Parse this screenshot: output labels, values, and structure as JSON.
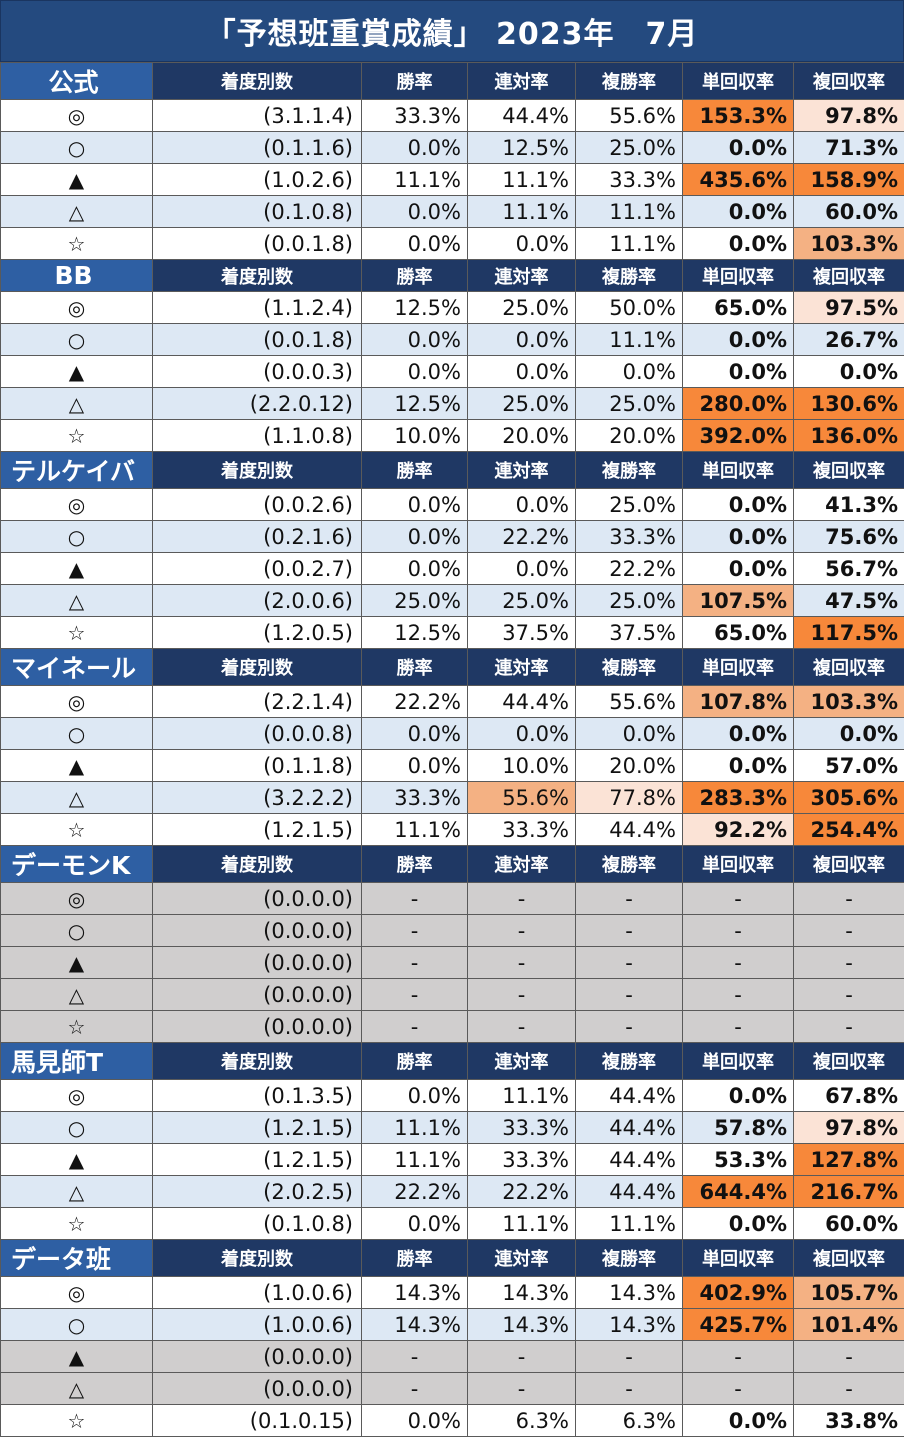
{
  "title": "「予想班重賞成績」 2023年　7月",
  "headers": [
    "着度別数",
    "勝率",
    "連対率",
    "複勝率",
    "単回収率",
    "複回収率"
  ],
  "groups": [
    {
      "name": "公式",
      "rows": [
        {
          "mark": "◎",
          "record": "(3.1.1.4)",
          "win": "33.3%",
          "place2": "44.4%",
          "show": "55.6%",
          "win_ret": "153.3%",
          "show_ret": "97.8%",
          "win_ret_hl": "o1",
          "show_ret_hl": "o3"
        },
        {
          "mark": "○",
          "record": "(0.1.1.6)",
          "win": "0.0%",
          "place2": "12.5%",
          "show": "25.0%",
          "win_ret": "0.0%",
          "show_ret": "71.3%"
        },
        {
          "mark": "▲",
          "record": "(1.0.2.6)",
          "win": "11.1%",
          "place2": "11.1%",
          "show": "33.3%",
          "win_ret": "435.6%",
          "show_ret": "158.9%",
          "win_ret_hl": "o1",
          "show_ret_hl": "o1"
        },
        {
          "mark": "△",
          "record": "(0.1.0.8)",
          "win": "0.0%",
          "place2": "11.1%",
          "show": "11.1%",
          "win_ret": "0.0%",
          "show_ret": "60.0%"
        },
        {
          "mark": "☆",
          "record": "(0.0.1.8)",
          "win": "0.0%",
          "place2": "0.0%",
          "show": "11.1%",
          "win_ret": "0.0%",
          "show_ret": "103.3%",
          "show_ret_hl": "o2"
        }
      ]
    },
    {
      "name": "BB",
      "rows": [
        {
          "mark": "◎",
          "record": "(1.1.2.4)",
          "win": "12.5%",
          "place2": "25.0%",
          "show": "50.0%",
          "win_ret": "65.0%",
          "show_ret": "97.5%",
          "show_ret_hl": "o3"
        },
        {
          "mark": "○",
          "record": "(0.0.1.8)",
          "win": "0.0%",
          "place2": "0.0%",
          "show": "11.1%",
          "win_ret": "0.0%",
          "show_ret": "26.7%"
        },
        {
          "mark": "▲",
          "record": "(0.0.0.3)",
          "win": "0.0%",
          "place2": "0.0%",
          "show": "0.0%",
          "win_ret": "0.0%",
          "show_ret": "0.0%"
        },
        {
          "mark": "△",
          "record": "(2.2.0.12)",
          "win": "12.5%",
          "place2": "25.0%",
          "show": "25.0%",
          "win_ret": "280.0%",
          "show_ret": "130.6%",
          "win_ret_hl": "o1",
          "show_ret_hl": "o1"
        },
        {
          "mark": "☆",
          "record": "(1.1.0.8)",
          "win": "10.0%",
          "place2": "20.0%",
          "show": "20.0%",
          "win_ret": "392.0%",
          "show_ret": "136.0%",
          "win_ret_hl": "o1",
          "show_ret_hl": "o1"
        }
      ]
    },
    {
      "name": "テルケイバ",
      "rows": [
        {
          "mark": "◎",
          "record": "(0.0.2.6)",
          "win": "0.0%",
          "place2": "0.0%",
          "show": "25.0%",
          "win_ret": "0.0%",
          "show_ret": "41.3%"
        },
        {
          "mark": "○",
          "record": "(0.2.1.6)",
          "win": "0.0%",
          "place2": "22.2%",
          "show": "33.3%",
          "win_ret": "0.0%",
          "show_ret": "75.6%"
        },
        {
          "mark": "▲",
          "record": "(0.0.2.7)",
          "win": "0.0%",
          "place2": "0.0%",
          "show": "22.2%",
          "win_ret": "0.0%",
          "show_ret": "56.7%"
        },
        {
          "mark": "△",
          "record": "(2.0.0.6)",
          "win": "25.0%",
          "place2": "25.0%",
          "show": "25.0%",
          "win_ret": "107.5%",
          "show_ret": "47.5%",
          "win_ret_hl": "o2"
        },
        {
          "mark": "☆",
          "record": "(1.2.0.5)",
          "win": "12.5%",
          "place2": "37.5%",
          "show": "37.5%",
          "win_ret": "65.0%",
          "show_ret": "117.5%",
          "show_ret_hl": "o1"
        }
      ]
    },
    {
      "name": "マイネール",
      "rows": [
        {
          "mark": "◎",
          "record": "(2.2.1.4)",
          "win": "22.2%",
          "place2": "44.4%",
          "show": "55.6%",
          "win_ret": "107.8%",
          "show_ret": "103.3%",
          "win_ret_hl": "o2",
          "show_ret_hl": "o2"
        },
        {
          "mark": "○",
          "record": "(0.0.0.8)",
          "win": "0.0%",
          "place2": "0.0%",
          "show": "0.0%",
          "win_ret": "0.0%",
          "show_ret": "0.0%"
        },
        {
          "mark": "▲",
          "record": "(0.1.1.8)",
          "win": "0.0%",
          "place2": "10.0%",
          "show": "20.0%",
          "win_ret": "0.0%",
          "show_ret": "57.0%"
        },
        {
          "mark": "△",
          "record": "(3.2.2.2)",
          "win": "33.3%",
          "place2": "55.6%",
          "show": "77.8%",
          "win_ret": "283.3%",
          "show_ret": "305.6%",
          "place2_hl": "o2",
          "show_hl": "o3",
          "win_ret_hl": "o1",
          "show_ret_hl": "o1"
        },
        {
          "mark": "☆",
          "record": "(1.2.1.5)",
          "win": "11.1%",
          "place2": "33.3%",
          "show": "44.4%",
          "win_ret": "92.2%",
          "show_ret": "254.4%",
          "win_ret_hl": "o3",
          "show_ret_hl": "o1"
        }
      ]
    },
    {
      "name": "デーモンK",
      "rows": [
        {
          "mark": "◎",
          "record": "(0.0.0.0)",
          "win": "-",
          "place2": "-",
          "show": "-",
          "win_ret": "-",
          "show_ret": "-",
          "gray": true
        },
        {
          "mark": "○",
          "record": "(0.0.0.0)",
          "win": "-",
          "place2": "-",
          "show": "-",
          "win_ret": "-",
          "show_ret": "-",
          "gray": true
        },
        {
          "mark": "▲",
          "record": "(0.0.0.0)",
          "win": "-",
          "place2": "-",
          "show": "-",
          "win_ret": "-",
          "show_ret": "-",
          "gray": true
        },
        {
          "mark": "△",
          "record": "(0.0.0.0)",
          "win": "-",
          "place2": "-",
          "show": "-",
          "win_ret": "-",
          "show_ret": "-",
          "gray": true
        },
        {
          "mark": "☆",
          "record": "(0.0.0.0)",
          "win": "-",
          "place2": "-",
          "show": "-",
          "win_ret": "-",
          "show_ret": "-",
          "gray": true
        }
      ]
    },
    {
      "name": "馬見師T",
      "rows": [
        {
          "mark": "◎",
          "record": "(0.1.3.5)",
          "win": "0.0%",
          "place2": "11.1%",
          "show": "44.4%",
          "win_ret": "0.0%",
          "show_ret": "67.8%"
        },
        {
          "mark": "○",
          "record": "(1.2.1.5)",
          "win": "11.1%",
          "place2": "33.3%",
          "show": "44.4%",
          "win_ret": "57.8%",
          "show_ret": "97.8%",
          "show_ret_hl": "o3"
        },
        {
          "mark": "▲",
          "record": "(1.2.1.5)",
          "win": "11.1%",
          "place2": "33.3%",
          "show": "44.4%",
          "win_ret": "53.3%",
          "show_ret": "127.8%",
          "show_ret_hl": "o1"
        },
        {
          "mark": "△",
          "record": "(2.0.2.5)",
          "win": "22.2%",
          "place2": "22.2%",
          "show": "44.4%",
          "win_ret": "644.4%",
          "show_ret": "216.7%",
          "win_ret_hl": "o1",
          "show_ret_hl": "o1"
        },
        {
          "mark": "☆",
          "record": "(0.1.0.8)",
          "win": "0.0%",
          "place2": "11.1%",
          "show": "11.1%",
          "win_ret": "0.0%",
          "show_ret": "60.0%"
        }
      ]
    },
    {
      "name": "データ班",
      "rows": [
        {
          "mark": "◎",
          "record": "(1.0.0.6)",
          "win": "14.3%",
          "place2": "14.3%",
          "show": "14.3%",
          "win_ret": "402.9%",
          "show_ret": "105.7%",
          "win_ret_hl": "o1",
          "show_ret_hl": "o2"
        },
        {
          "mark": "○",
          "record": "(1.0.0.6)",
          "win": "14.3%",
          "place2": "14.3%",
          "show": "14.3%",
          "win_ret": "425.7%",
          "show_ret": "101.4%",
          "win_ret_hl": "o1",
          "show_ret_hl": "o2"
        },
        {
          "mark": "▲",
          "record": "(0.0.0.0)",
          "win": "-",
          "place2": "-",
          "show": "-",
          "win_ret": "-",
          "show_ret": "-",
          "gray": true
        },
        {
          "mark": "△",
          "record": "(0.0.0.0)",
          "win": "-",
          "place2": "-",
          "show": "-",
          "win_ret": "-",
          "show_ret": "-",
          "gray": true
        },
        {
          "mark": "☆",
          "record": "(0.1.0.15)",
          "win": "0.0%",
          "place2": "6.3%",
          "show": "6.3%",
          "win_ret": "0.0%",
          "show_ret": "33.8%"
        }
      ]
    }
  ]
}
